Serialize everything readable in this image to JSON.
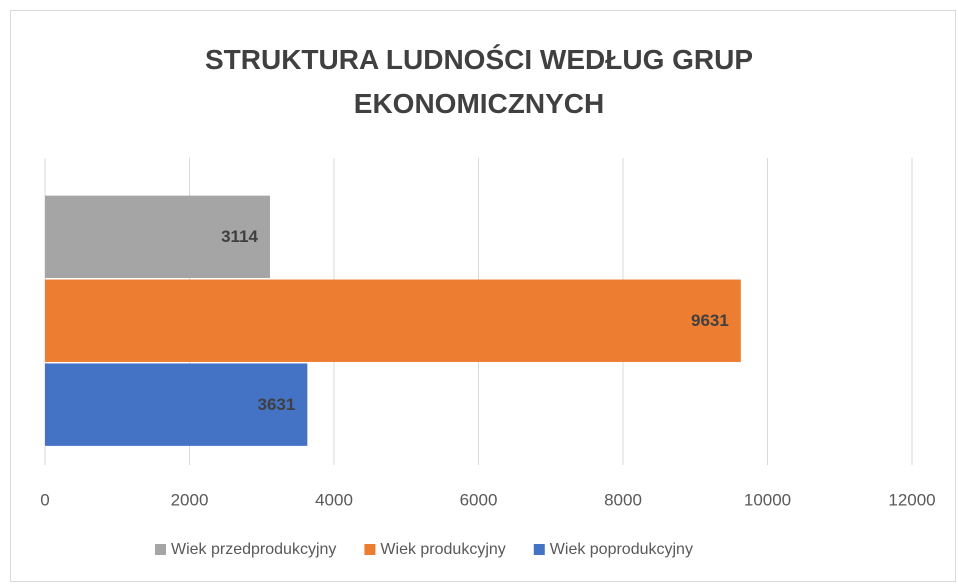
{
  "chart_data": {
    "type": "bar",
    "orientation": "horizontal",
    "title": "STRUKTURA LUDNOŚCI WEDŁUG GRUP EKONOMICZNYCH",
    "categories": [
      null
    ],
    "series": [
      {
        "name": "Wiek przedprodukcyjny",
        "color": "#a5a5a5",
        "values": [
          3114
        ]
      },
      {
        "name": "Wiek produkcyjny",
        "color": "#ed7d31",
        "values": [
          9631
        ]
      },
      {
        "name": "Wiek poprodukcyjny",
        "color": "#4472c4",
        "values": [
          3631
        ]
      }
    ],
    "xlim": [
      0,
      12000
    ],
    "xticks": [
      0,
      2000,
      4000,
      6000,
      8000,
      10000,
      12000
    ],
    "grid": true,
    "legend": "bottom",
    "data_labels": true
  }
}
